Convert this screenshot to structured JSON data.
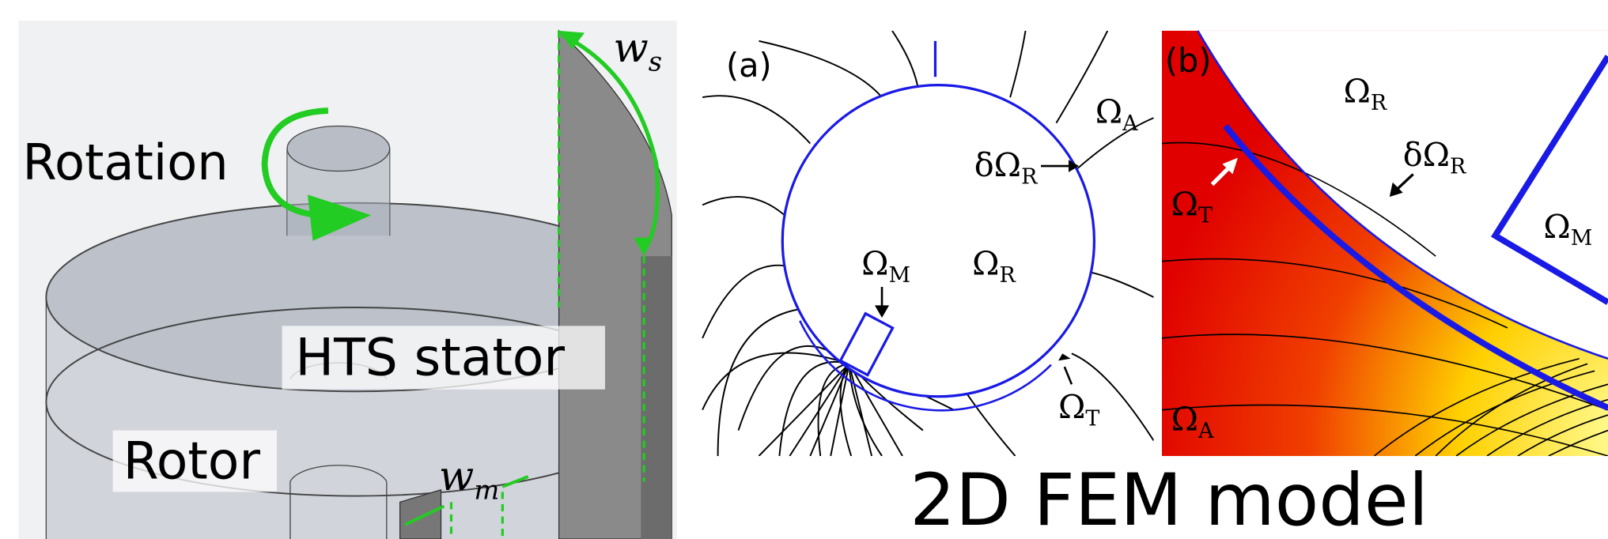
{
  "left_panel": {
    "rotation_label": "Rotation",
    "stator_label": "HTS stator",
    "rotor_label": "Rotor",
    "ws_label": {
      "symbol": "w",
      "sub": "s"
    },
    "wm_label": {
      "symbol": "w",
      "sub": "m"
    }
  },
  "panel_a": {
    "label": "(a)",
    "omega_a": {
      "symbol": "Ω",
      "sub": "A"
    },
    "delta_omega_r": {
      "symbol": "δΩ",
      "sub": "R"
    },
    "omega_m": {
      "symbol": "Ω",
      "sub": "M"
    },
    "omega_r": {
      "symbol": "Ω",
      "sub": "R"
    },
    "omega_t": {
      "symbol": "Ω",
      "sub": "T"
    }
  },
  "panel_b": {
    "label": "(b)",
    "omega_r": {
      "symbol": "Ω",
      "sub": "R"
    },
    "delta_omega_r": {
      "symbol": "δΩ",
      "sub": "R"
    },
    "omega_t": {
      "symbol": "Ω",
      "sub": "T"
    },
    "omega_m": {
      "symbol": "Ω",
      "sub": "M"
    },
    "omega_a": {
      "symbol": "Ω",
      "sub": "A"
    }
  },
  "caption": "2D FEM model"
}
